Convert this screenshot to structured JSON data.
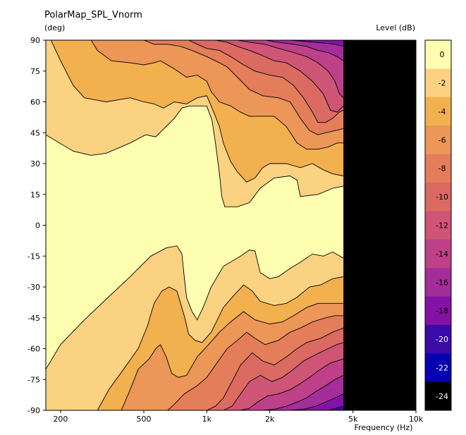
{
  "chart_data": {
    "type": "heatmap",
    "title": "PolarMap_SPL_Vnorm",
    "ylabel": "(deg)",
    "xlabel": "Frequency  (Hz)",
    "colorbar_label": "Level  (dB)",
    "x_ticks": [
      "200",
      "500",
      "1k",
      "2k",
      "5k",
      "10k"
    ],
    "x_tick_values": [
      200,
      500,
      1000,
      2000,
      5000,
      10000
    ],
    "xlim": [
      170,
      10000
    ],
    "x_scale": "log",
    "y_ticks": [
      "90",
      "75",
      "60",
      "45",
      "30",
      "15",
      "0",
      "-15",
      "-30",
      "-45",
      "-60",
      "-75",
      "-90"
    ],
    "ylim": [
      -90,
      90
    ],
    "no_data_range_hz": [
      4500,
      10000
    ],
    "colorbar": {
      "ticks": [
        "0",
        "-2",
        "-4",
        "-6",
        "-8",
        "-10",
        "-12",
        "-14",
        "-16",
        "-18",
        "-20",
        "-22",
        "-24"
      ],
      "levels": [
        {
          "upper_db": 1,
          "color": "#FEFEB1"
        },
        {
          "upper_db": -1,
          "color": "#FBD282"
        },
        {
          "upper_db": -3,
          "color": "#F3B04F"
        },
        {
          "upper_db": -5,
          "color": "#EC9658"
        },
        {
          "upper_db": -7,
          "color": "#E47E5A"
        },
        {
          "upper_db": -9,
          "color": "#DB6A63"
        },
        {
          "upper_db": -11,
          "color": "#CF5576"
        },
        {
          "upper_db": -13,
          "color": "#BE4088"
        },
        {
          "upper_db": -15,
          "color": "#A42E99"
        },
        {
          "upper_db": -17,
          "color": "#8512A6"
        },
        {
          "upper_db": -19,
          "color": "#3B0AA8"
        },
        {
          "upper_db": -21,
          "color": "#0600B3"
        },
        {
          "upper_db": -23,
          "color": "#000000"
        }
      ]
    },
    "contour_bands": [
      {
        "level_db": -1,
        "color": "#FBD282",
        "top": [
          [
            170,
            44
          ],
          [
            230,
            36
          ],
          [
            280,
            34
          ],
          [
            330,
            35
          ],
          [
            430,
            40
          ],
          [
            510,
            44
          ],
          [
            570,
            43
          ],
          [
            700,
            52
          ],
          [
            750,
            57
          ],
          [
            800,
            58
          ],
          [
            1000,
            58
          ],
          [
            1060,
            50
          ],
          [
            1080,
            40
          ],
          [
            1150,
            25
          ],
          [
            1180,
            15
          ],
          [
            1200,
            10
          ],
          [
            1300,
            9
          ],
          [
            1500,
            10
          ],
          [
            1700,
            17
          ],
          [
            2000,
            23
          ],
          [
            2500,
            24
          ],
          [
            2700,
            22
          ],
          [
            2800,
            13
          ],
          [
            3500,
            16
          ],
          [
            4000,
            18
          ],
          [
            4500,
            19
          ]
        ],
        "bottom": [
          [
            170,
            -90
          ],
          [
            170,
            -90
          ],
          [
            2000,
            -90
          ],
          [
            4500,
            -90
          ]
        ]
      },
      {
        "level_db": -3,
        "color": "#F3B04F",
        "top": [
          [
            170,
            -90
          ],
          [
            4500,
            -90
          ]
        ],
        "bottom": [
          [
            170,
            -90
          ],
          [
            4500,
            -90
          ]
        ]
      }
    ]
  },
  "colors": {
    "no_data": "#000000",
    "grid": "#000000",
    "background": "#FFFFFF"
  }
}
